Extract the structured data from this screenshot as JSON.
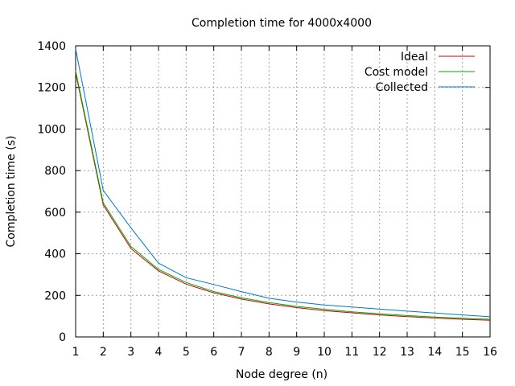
{
  "chart_data": {
    "type": "line",
    "title": "Completion time for 4000x4000",
    "xlabel": "Node degree (n)",
    "ylabel": "Completion time (s)",
    "x": [
      1,
      2,
      3,
      4,
      5,
      6,
      7,
      8,
      9,
      10,
      11,
      12,
      13,
      14,
      15,
      16
    ],
    "xlim": [
      1,
      16
    ],
    "ylim": [
      0,
      1400
    ],
    "xticks": [
      "1",
      "2",
      "3",
      "4",
      "5",
      "6",
      "7",
      "8",
      "9",
      "10",
      "11",
      "12",
      "13",
      "14",
      "15",
      "16"
    ],
    "yticks": [
      "0",
      "200",
      "400",
      "600",
      "800",
      "1000",
      "1200",
      "1400"
    ],
    "grid": true,
    "legend_position": "top-right",
    "series": [
      {
        "name": "Ideal",
        "color": "#cc0000",
        "values": [
          1270,
          635,
          425,
          318,
          254,
          212,
          182,
          159,
          141,
          127,
          116,
          106,
          98,
          91,
          85,
          80
        ]
      },
      {
        "name": "Cost model",
        "color": "#00aa00",
        "values": [
          1280,
          645,
          435,
          325,
          262,
          218,
          188,
          165,
          147,
          133,
          121,
          111,
          103,
          96,
          90,
          85
        ]
      },
      {
        "name": "Collected",
        "color": "#0077cc",
        "values": [
          1385,
          705,
          525,
          355,
          285,
          252,
          218,
          186,
          168,
          154,
          144,
          134,
          124,
          115,
          106,
          97
        ]
      }
    ]
  }
}
